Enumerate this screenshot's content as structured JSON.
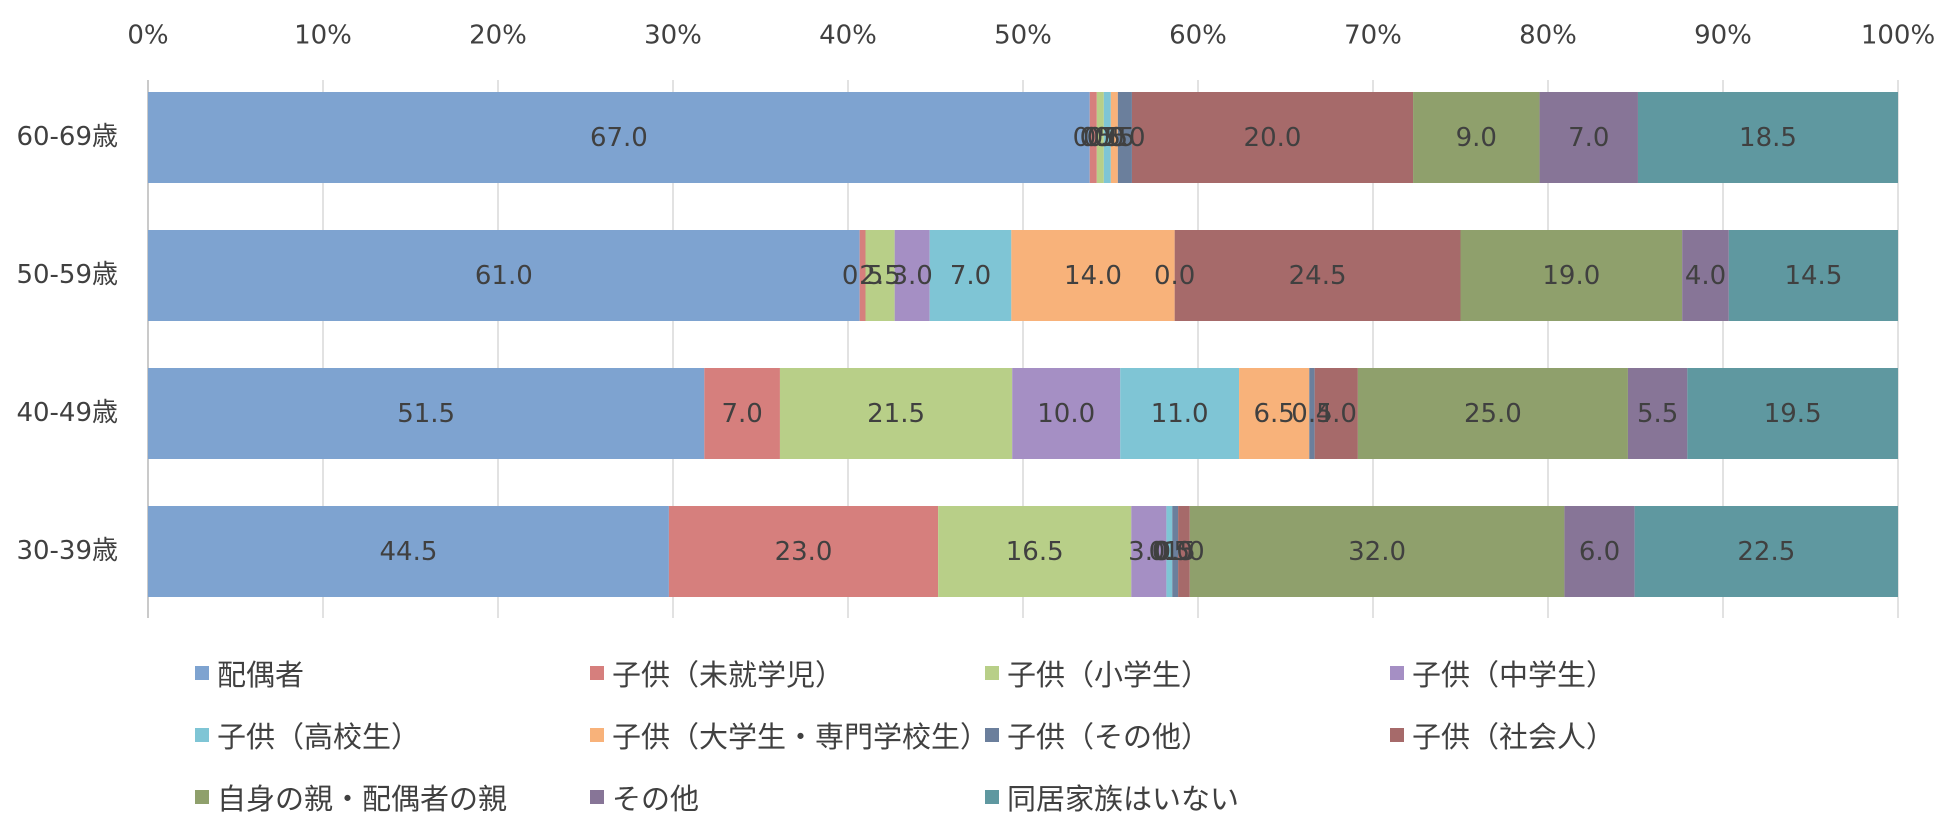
{
  "chart_data": {
    "type": "bar",
    "orientation": "horizontal",
    "stacked": "percent",
    "xlim": [
      0,
      100
    ],
    "x_ticks": [
      "0%",
      "10%",
      "20%",
      "30%",
      "40%",
      "50%",
      "60%",
      "70%",
      "80%",
      "90%",
      "100%"
    ],
    "grid": true,
    "legend_position": "bottom",
    "categories": [
      "60-69歳",
      "50-59歳",
      "40-49歳",
      "30-39歳"
    ],
    "series": [
      {
        "name": "配偶者",
        "color": "#7ea3d0",
        "values": [
          67.0,
          61.0,
          51.5,
          44.5
        ],
        "labels": [
          "67.0",
          "61.0",
          "51.5",
          "44.5"
        ]
      },
      {
        "name": "子供（未就学児）",
        "color": "#d67f7d",
        "values": [
          0.5,
          0.5,
          7.0,
          23.0
        ],
        "labels": [
          "0.5",
          "0.5",
          "7.0",
          "23.0"
        ]
      },
      {
        "name": "子供（小学生）",
        "color": "#b8cf88",
        "values": [
          0.5,
          2.5,
          21.5,
          16.5
        ],
        "labels": [
          "0.5",
          "2.5",
          "21.5",
          "16.5"
        ]
      },
      {
        "name": "子供（中学生）",
        "color": "#a58fc4",
        "values": [
          0.0,
          3.0,
          10.0,
          3.0
        ],
        "labels": [
          "0.0",
          "3.0",
          "10.0",
          "3.0"
        ]
      },
      {
        "name": "子供（高校生）",
        "color": "#7fc5d5",
        "values": [
          0.5,
          7.0,
          11.0,
          0.5
        ],
        "labels": [
          "0.5",
          "7.0",
          "11.0",
          "0.5"
        ]
      },
      {
        "name": "子供（大学生・専門学校生）",
        "color": "#f8b27a",
        "values": [
          0.5,
          14.0,
          6.5,
          0.0
        ],
        "labels": [
          "0.5",
          "14.0",
          "6.5",
          "0.0"
        ]
      },
      {
        "name": "子供（その他）",
        "color": "#6b7f9c",
        "values": [
          1.0,
          0.0,
          0.5,
          0.5
        ],
        "labels": [
          "1.0",
          "0.0",
          "0.5",
          "0.5"
        ]
      },
      {
        "name": "子供（社会人）",
        "color": "#a66a6a",
        "values": [
          20.0,
          24.5,
          4.0,
          1.0
        ],
        "labels": [
          "20.0",
          "24.5",
          "4.0",
          "1.0"
        ]
      },
      {
        "name": "自身の親・配偶者の親",
        "color": "#8fa06c",
        "values": [
          9.0,
          19.0,
          25.0,
          32.0
        ],
        "labels": [
          "9.0",
          "19.0",
          "25.0",
          "32.0"
        ]
      },
      {
        "name": "その他",
        "color": "#877597",
        "values": [
          7.0,
          4.0,
          5.5,
          6.0
        ],
        "labels": [
          "7.0",
          "4.0",
          "5.5",
          "6.0"
        ]
      },
      {
        "name": "同居家族はいない",
        "color": "#5f98a0",
        "values": [
          18.5,
          14.5,
          19.5,
          22.5
        ],
        "labels": [
          "18.5",
          "14.5",
          "19.5",
          "22.5"
        ]
      }
    ]
  }
}
